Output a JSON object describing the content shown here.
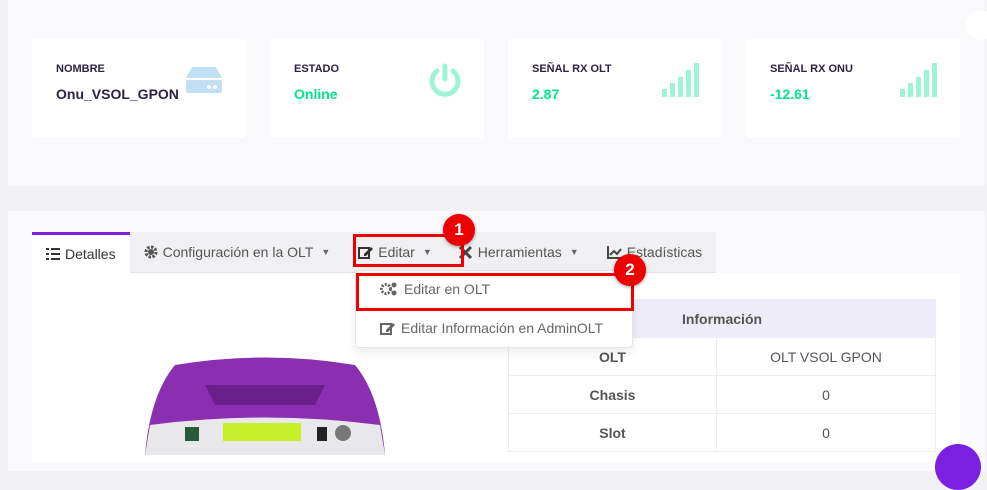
{
  "cards": [
    {
      "label": "NOMBRE",
      "value": "Onu_VSOL_GPON",
      "icon": "server-icon",
      "color": "#2d2340"
    },
    {
      "label": "ESTADO",
      "value": "Online",
      "icon": "power-icon",
      "color": "#00e58c"
    },
    {
      "label": "SEÑAL RX OLT",
      "value": "2.87",
      "icon": "signal-icon",
      "color": "#00e58c"
    },
    {
      "label": "SEÑAL RX ONU",
      "value": "-12.61",
      "icon": "signal-icon",
      "color": "#00e58c"
    }
  ],
  "tabs": {
    "detalles": "Detalles",
    "config": "Configuración en la OLT",
    "editar": "Editar",
    "herramientas": "Herramientas",
    "estadisticas": "Estadísticas"
  },
  "dropdown": {
    "editar_olt": "Editar en OLT",
    "editar_admin": "Editar Información en AdminOLT"
  },
  "badges": [
    "1",
    "2"
  ],
  "table": {
    "header": "Información",
    "rows": [
      {
        "k": "OLT",
        "v": "OLT VSOL GPON"
      },
      {
        "k": "Chasis",
        "v": "0"
      },
      {
        "k": "Slot",
        "v": "0"
      }
    ]
  }
}
